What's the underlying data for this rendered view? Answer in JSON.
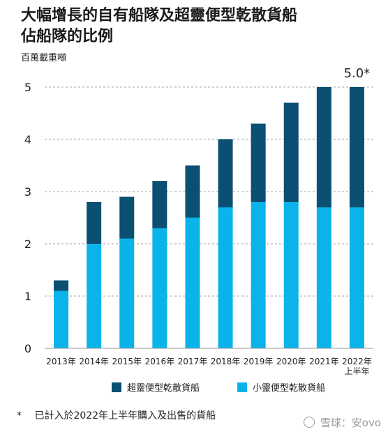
{
  "title_line1": "大幅增長的自有船隊及超靈便型乾散貨船",
  "title_line2": "佔船隊的比例",
  "unit_label": "百萬載重噸",
  "chart_data": {
    "type": "bar",
    "stacked": true,
    "categories": [
      "2013年",
      "2014年",
      "2015年",
      "2016年",
      "2017年",
      "2018年",
      "2019年",
      "2020年",
      "2021年",
      "2022年\n上半年"
    ],
    "series": [
      {
        "name": "小靈便型乾散貨船",
        "color": "#0ab4ea",
        "values": [
          1.1,
          2.0,
          2.1,
          2.3,
          2.5,
          2.7,
          2.8,
          2.8,
          2.7,
          2.7
        ]
      },
      {
        "name": "超靈便型乾散貨船",
        "color": "#0b4f72",
        "values": [
          0.2,
          0.8,
          0.8,
          0.9,
          1.0,
          1.3,
          1.5,
          1.9,
          2.3,
          2.3
        ]
      }
    ],
    "ylim": [
      0,
      5
    ],
    "yticks": [
      0,
      1,
      2,
      3,
      4,
      5
    ],
    "grid": true,
    "annotation": "5.0*",
    "legend_placement": "bottom"
  },
  "legend": {
    "item1": "超靈便型乾散貨船",
    "item2": "小靈便型乾散貨船"
  },
  "footnote": {
    "star": "*",
    "text": "已計入於2022年上半年購入及出售的貨船"
  },
  "watermark": "雪球：安ovo"
}
